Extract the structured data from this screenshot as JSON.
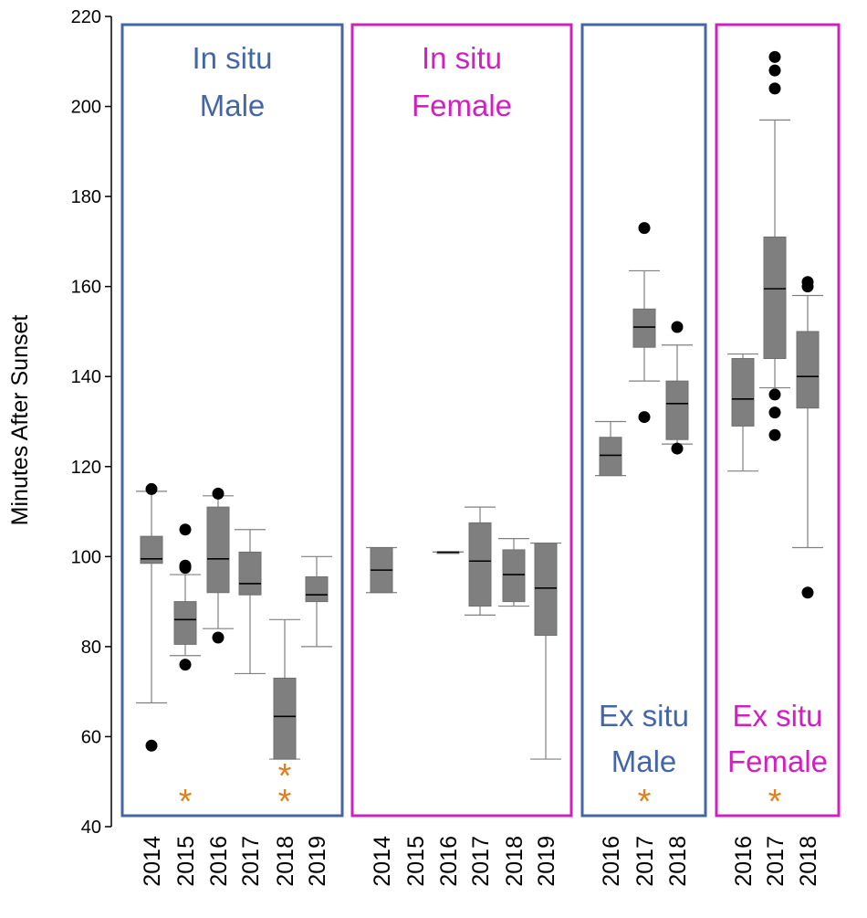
{
  "chart_data": {
    "type": "box",
    "ylabel": "Minutes After Sunset",
    "ylim": [
      40,
      220
    ],
    "yticks": [
      40,
      60,
      80,
      100,
      120,
      140,
      160,
      180,
      200,
      220
    ],
    "colors": {
      "male": "#4466a8",
      "female": "#d020c0",
      "box_fill": "#7f7f7f",
      "whisker": "#808080",
      "outlier": "#000000",
      "star": "#e07f20",
      "axis": "#000000"
    },
    "groups": [
      {
        "label_lines": [
          "In situ",
          "Male"
        ],
        "sex": "male",
        "label_position": "top",
        "boxes": [
          {
            "year": "2014",
            "whislo": 67.5,
            "q1": 98.5,
            "med": 99.5,
            "q3": 104.5,
            "whishi": 114.5,
            "fliers": [
              58,
              115
            ],
            "stars": 0
          },
          {
            "year": "2015",
            "whislo": 78,
            "q1": 80.5,
            "med": 86,
            "q3": 90,
            "whishi": 96,
            "fliers": [
              76,
              97.5,
              98,
              106
            ],
            "stars": 1
          },
          {
            "year": "2016",
            "whislo": 84,
            "q1": 92,
            "med": 99.5,
            "q3": 111,
            "whishi": 113.5,
            "fliers": [
              82,
              114
            ],
            "stars": 0
          },
          {
            "year": "2017",
            "whislo": 74,
            "q1": 91.5,
            "med": 94,
            "q3": 101,
            "whishi": 106,
            "fliers": [],
            "stars": 0
          },
          {
            "year": "2018",
            "whislo": 55,
            "q1": 55,
            "med": 64.5,
            "q3": 73,
            "whishi": 86,
            "fliers": [],
            "stars": 2
          },
          {
            "year": "2019",
            "whislo": 80,
            "q1": 90,
            "med": 91.5,
            "q3": 95.5,
            "whishi": 100,
            "fliers": [],
            "stars": 0
          }
        ]
      },
      {
        "label_lines": [
          "In situ",
          "Female"
        ],
        "sex": "female",
        "label_position": "top",
        "boxes": [
          {
            "year": "2014",
            "whislo": 92,
            "q1": 92,
            "med": 97,
            "q3": 102,
            "whishi": 102,
            "fliers": [],
            "stars": 0
          },
          {
            "year": "2015",
            "whislo": null,
            "q1": null,
            "med": null,
            "q3": null,
            "whishi": null,
            "fliers": [],
            "stars": 0
          },
          {
            "year": "2016",
            "whislo": 101,
            "q1": 101,
            "med": 101,
            "q3": 101,
            "whishi": 101,
            "fliers": [],
            "stars": 0
          },
          {
            "year": "2017",
            "whislo": 87,
            "q1": 89,
            "med": 99,
            "q3": 107.5,
            "whishi": 111,
            "fliers": [],
            "stars": 0
          },
          {
            "year": "2018",
            "whislo": 89,
            "q1": 90,
            "med": 96,
            "q3": 101.5,
            "whishi": 104,
            "fliers": [],
            "stars": 0
          },
          {
            "year": "2019",
            "whislo": 55,
            "q1": 82.5,
            "med": 93,
            "q3": 103,
            "whishi": 103,
            "fliers": [],
            "stars": 0
          }
        ]
      },
      {
        "label_lines": [
          "Ex situ",
          "Male"
        ],
        "sex": "male",
        "label_position": "bottom",
        "boxes": [
          {
            "year": "2016",
            "whislo": 118,
            "q1": 118,
            "med": 122.5,
            "q3": 126.5,
            "whishi": 130,
            "fliers": [],
            "stars": 0
          },
          {
            "year": "2017",
            "whislo": 139,
            "q1": 146.5,
            "med": 151,
            "q3": 155,
            "whishi": 163.5,
            "fliers": [
              131,
              173
            ],
            "stars": 1
          },
          {
            "year": "2018",
            "whislo": 125,
            "q1": 126,
            "med": 134,
            "q3": 139,
            "whishi": 147,
            "fliers": [
              124,
              151
            ],
            "stars": 0
          }
        ]
      },
      {
        "label_lines": [
          "Ex situ",
          "Female"
        ],
        "sex": "female",
        "label_position": "bottom",
        "boxes": [
          {
            "year": "2016",
            "whislo": 119,
            "q1": 129,
            "med": 135,
            "q3": 144,
            "whishi": 145,
            "fliers": [],
            "stars": 0
          },
          {
            "year": "2017",
            "whislo": 137.5,
            "q1": 144,
            "med": 159.5,
            "q3": 171,
            "whishi": 197,
            "fliers": [
              127,
              132,
              136,
              204,
              208,
              211
            ],
            "stars": 1
          },
          {
            "year": "2018",
            "whislo": 102,
            "q1": 133,
            "med": 140,
            "q3": 150,
            "whishi": 158,
            "fliers": [
              92,
              160,
              161
            ],
            "stars": 0
          }
        ]
      }
    ],
    "annotation_symbol": "*"
  }
}
